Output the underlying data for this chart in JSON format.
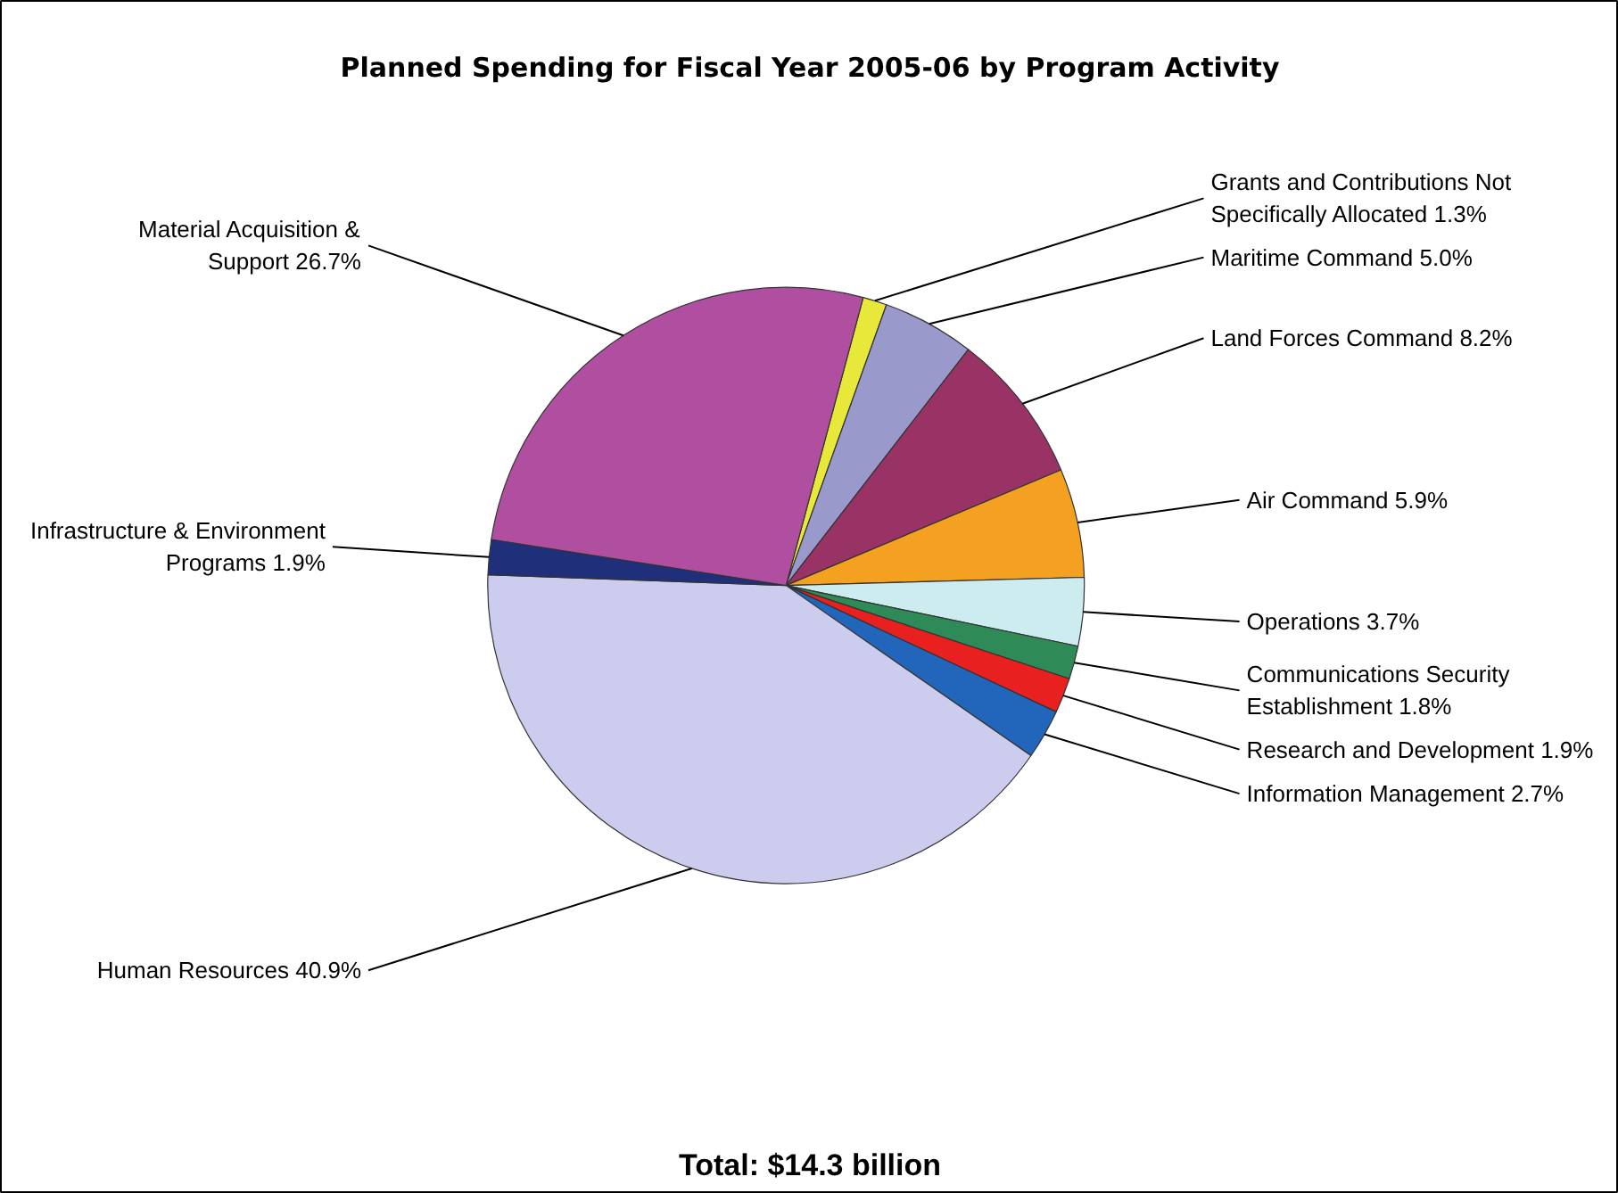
{
  "chart_data": {
    "type": "pie",
    "title": "Planned Spending for Fiscal Year 2005-06 by Program Activity",
    "categories": [
      "Grants and Contributions Not Specifically Allocated",
      "Maritime Command",
      "Land Forces Command",
      "Air Command",
      "Operations",
      "Communications Security Establishment",
      "Research and Development",
      "Information Management",
      "Human Resources",
      "Infrastructure & Environment Programs",
      "Material Acquisition & Support"
    ],
    "values": [
      1.3,
      5.0,
      8.2,
      5.9,
      3.7,
      1.8,
      1.9,
      2.7,
      40.9,
      1.9,
      26.7
    ],
    "value_labels": [
      "1.3%",
      "5.0%",
      "8.2%",
      "5.9%",
      "3.7%",
      "1.8%",
      "1.9%",
      "2.7%",
      "40.9%",
      "1.9%",
      "26.7%"
    ],
    "colors": [
      "#e8e83a",
      "#9999cc",
      "#993366",
      "#f4a020",
      "#ccecf0",
      "#2e8b57",
      "#e82020",
      "#2266bb",
      "#ccccee",
      "#1f2f7a",
      "#b04fa0"
    ],
    "annotations": [
      "Total: $14.3 billion"
    ]
  }
}
